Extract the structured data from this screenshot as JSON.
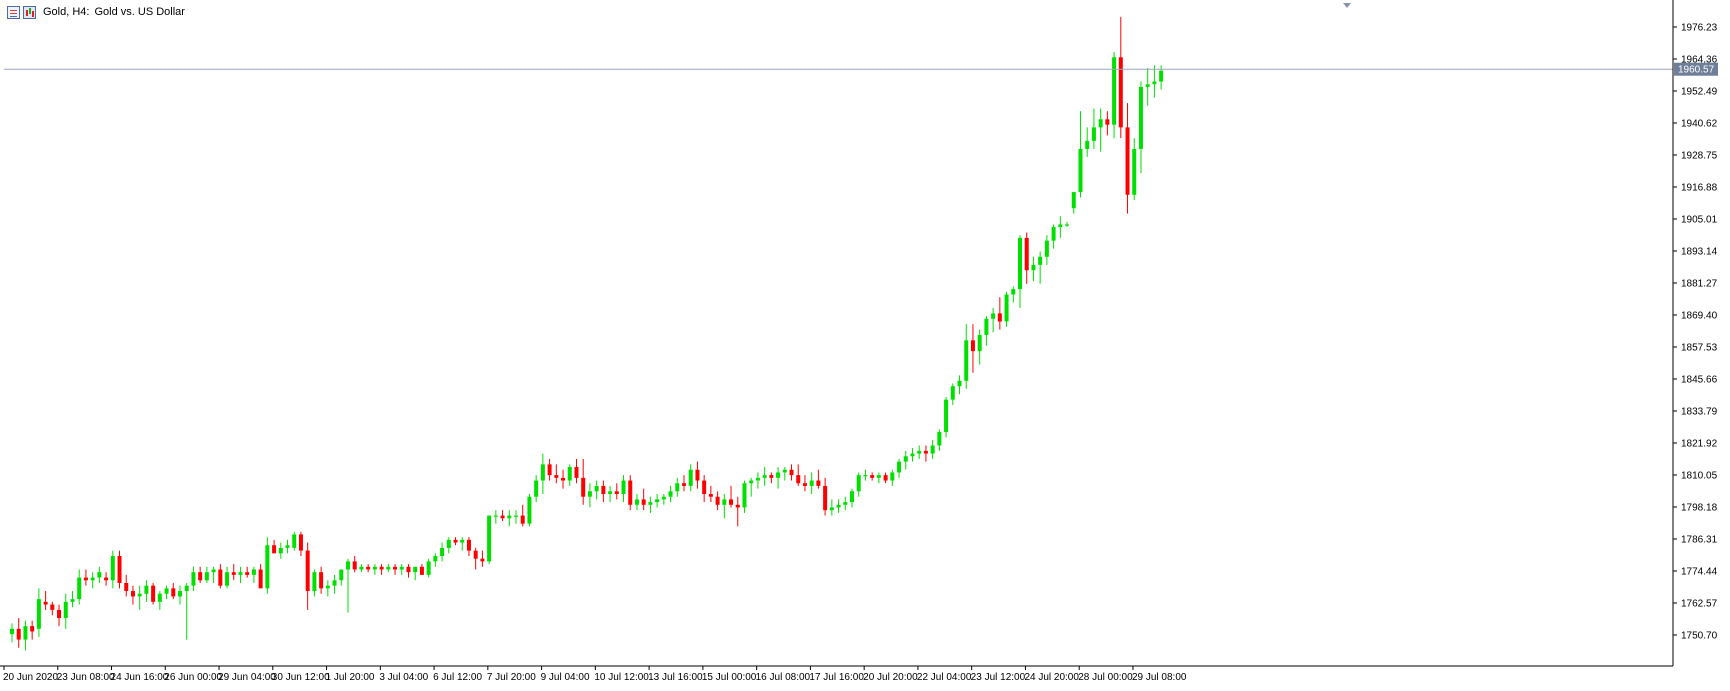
{
  "title": {
    "symbol": "Gold, H4:",
    "description": "Gold vs. US Dollar"
  },
  "price_axis": {
    "labels": [
      "1976.23",
      "1964.36",
      "1952.49",
      "1940.62",
      "1928.75",
      "1916.88",
      "1905.01",
      "1893.14",
      "1881.27",
      "1869.40",
      "1857.53",
      "1845.66",
      "1833.79",
      "1821.92",
      "1810.05",
      "1798.18",
      "1786.31",
      "1774.44",
      "1762.57",
      "1750.70"
    ],
    "current_price": "1960.57"
  },
  "time_axis": {
    "labels": [
      "20 Jun 2020",
      "23 Jun 08:00",
      "24 Jun 16:00",
      "26 Jun 00:00",
      "29 Jun 04:00",
      "30 Jun 12:00",
      "1 Jul 20:00",
      "3 Jul 04:00",
      "6 Jul 12:00",
      "7 Jul 20:00",
      "9 Jul 04:00",
      "10 Jul 12:00",
      "13 Jul 16:00",
      "15 Jul 00:00",
      "16 Jul 08:00",
      "17 Jul 16:00",
      "20 Jul 20:00",
      "22 Jul 04:00",
      "23 Jul 12:00",
      "24 Jul 20:00",
      "28 Jul 00:00",
      "29 Jul 08:00"
    ]
  },
  "colors": {
    "bull": "#00e000",
    "bear": "#ff0000",
    "axis": "#000000",
    "price_line": "#9aa6b8",
    "price_tag_bg": "#6f7f99",
    "price_tag_text": "#ffffff",
    "background": "#ffffff"
  },
  "chart_data": {
    "type": "candlestick",
    "ylim": [
      1742,
      1981
    ],
    "grid": false,
    "candles": [
      [
        1751,
        1755,
        1748,
        1753
      ],
      [
        1753,
        1757,
        1746,
        1749
      ],
      [
        1749,
        1756,
        1745,
        1754
      ],
      [
        1754,
        1756,
        1749,
        1752
      ],
      [
        1753,
        1768,
        1750,
        1764
      ],
      [
        1763,
        1767,
        1760,
        1762
      ],
      [
        1762,
        1763,
        1758,
        1760
      ],
      [
        1760,
        1762,
        1754,
        1757
      ],
      [
        1757,
        1766,
        1753,
        1763
      ],
      [
        1763,
        1767,
        1761,
        1764
      ],
      [
        1764,
        1775,
        1762,
        1772
      ],
      [
        1772,
        1775,
        1769,
        1771
      ],
      [
        1771,
        1774,
        1768,
        1772
      ],
      [
        1772,
        1776,
        1770,
        1774
      ],
      [
        1772,
        1774,
        1769,
        1771
      ],
      [
        1771,
        1782,
        1768,
        1780
      ],
      [
        1780,
        1782,
        1768,
        1770
      ],
      [
        1770,
        1773,
        1765,
        1767
      ],
      [
        1767,
        1769,
        1762,
        1765
      ],
      [
        1765,
        1769,
        1760,
        1766
      ],
      [
        1766,
        1771,
        1763,
        1769
      ],
      [
        1769,
        1770,
        1762,
        1763
      ],
      [
        1763,
        1767,
        1760,
        1766
      ],
      [
        1766,
        1769,
        1764,
        1768
      ],
      [
        1768,
        1770,
        1764,
        1765
      ],
      [
        1765,
        1769,
        1762,
        1767
      ],
      [
        1767,
        1770,
        1749,
        1769
      ],
      [
        1769,
        1776,
        1767,
        1774
      ],
      [
        1774,
        1776,
        1770,
        1771
      ],
      [
        1771,
        1776,
        1770,
        1774
      ],
      [
        1774,
        1776,
        1770,
        1775
      ],
      [
        1775,
        1777,
        1768,
        1769
      ],
      [
        1769,
        1776,
        1768,
        1774
      ],
      [
        1774,
        1777,
        1771,
        1773
      ],
      [
        1773,
        1776,
        1770,
        1774
      ],
      [
        1774,
        1776,
        1772,
        1773
      ],
      [
        1773,
        1776,
        1770,
        1775
      ],
      [
        1775,
        1777,
        1769,
        1768
      ],
      [
        1768,
        1787,
        1766,
        1784
      ],
      [
        1784,
        1786,
        1781,
        1781
      ],
      [
        1781,
        1785,
        1779,
        1783
      ],
      [
        1783,
        1786,
        1781,
        1784
      ],
      [
        1783,
        1789,
        1782,
        1788
      ],
      [
        1788,
        1789,
        1780,
        1782
      ],
      [
        1782,
        1785,
        1760,
        1767
      ],
      [
        1767,
        1775,
        1765,
        1774
      ],
      [
        1774,
        1776,
        1766,
        1768
      ],
      [
        1768,
        1771,
        1765,
        1769
      ],
      [
        1769,
        1773,
        1766,
        1771
      ],
      [
        1771,
        1775,
        1769,
        1775
      ],
      [
        1775,
        1779,
        1759,
        1778
      ],
      [
        1778,
        1780,
        1774,
        1775
      ],
      [
        1775,
        1777,
        1774,
        1776
      ],
      [
        1776,
        1777,
        1774,
        1775
      ],
      [
        1775,
        1777,
        1773,
        1776
      ],
      [
        1776,
        1777,
        1773,
        1775
      ],
      [
        1775,
        1777,
        1774,
        1776
      ],
      [
        1776,
        1777,
        1773,
        1775
      ],
      [
        1775,
        1777,
        1773,
        1776
      ],
      [
        1776,
        1777,
        1772,
        1774
      ],
      [
        1774,
        1776,
        1771,
        1776
      ],
      [
        1776,
        1777,
        1773,
        1773
      ],
      [
        1773,
        1779,
        1772,
        1778
      ],
      [
        1778,
        1781,
        1776,
        1780
      ],
      [
        1780,
        1785,
        1778,
        1783
      ],
      [
        1783,
        1787,
        1781,
        1786
      ],
      [
        1786,
        1787,
        1784,
        1785
      ],
      [
        1785,
        1787,
        1782,
        1786
      ],
      [
        1786,
        1787,
        1780,
        1782
      ],
      [
        1782,
        1783,
        1775,
        1779
      ],
      [
        1779,
        1782,
        1776,
        1778
      ],
      [
        1778,
        1795,
        1777,
        1795
      ],
      [
        1795,
        1797,
        1792,
        1795
      ],
      [
        1795,
        1797,
        1793,
        1794
      ],
      [
        1794,
        1797,
        1791,
        1795
      ],
      [
        1795,
        1797,
        1792,
        1795
      ],
      [
        1795,
        1799,
        1791,
        1792
      ],
      [
        1792,
        1803,
        1791,
        1802
      ],
      [
        1802,
        1810,
        1800,
        1808
      ],
      [
        1808,
        1818,
        1803,
        1814
      ],
      [
        1814,
        1816,
        1808,
        1810
      ],
      [
        1810,
        1814,
        1807,
        1809
      ],
      [
        1809,
        1812,
        1805,
        1808
      ],
      [
        1808,
        1814,
        1806,
        1813
      ],
      [
        1813,
        1816,
        1807,
        1809
      ],
      [
        1809,
        1816,
        1799,
        1802
      ],
      [
        1802,
        1807,
        1798,
        1804
      ],
      [
        1804,
        1808,
        1801,
        1806
      ],
      [
        1806,
        1808,
        1800,
        1803
      ],
      [
        1803,
        1806,
        1800,
        1804
      ],
      [
        1804,
        1807,
        1801,
        1803
      ],
      [
        1803,
        1810,
        1800,
        1808
      ],
      [
        1808,
        1810,
        1797,
        1799
      ],
      [
        1799,
        1803,
        1797,
        1801
      ],
      [
        1801,
        1805,
        1797,
        1799
      ],
      [
        1799,
        1802,
        1796,
        1800
      ],
      [
        1800,
        1803,
        1798,
        1801
      ],
      [
        1801,
        1803,
        1799,
        1802
      ],
      [
        1802,
        1806,
        1800,
        1804
      ],
      [
        1804,
        1809,
        1802,
        1807
      ],
      [
        1807,
        1810,
        1804,
        1806
      ],
      [
        1806,
        1814,
        1804,
        1812
      ],
      [
        1812,
        1815,
        1805,
        1808
      ],
      [
        1808,
        1810,
        1800,
        1803
      ],
      [
        1803,
        1806,
        1800,
        1802
      ],
      [
        1802,
        1804,
        1797,
        1799
      ],
      [
        1799,
        1803,
        1794,
        1801
      ],
      [
        1801,
        1806,
        1798,
        1799
      ],
      [
        1799,
        1802,
        1791,
        1798
      ],
      [
        1798,
        1808,
        1796,
        1807
      ],
      [
        1807,
        1809,
        1802,
        1808
      ],
      [
        1808,
        1811,
        1805,
        1809
      ],
      [
        1809,
        1813,
        1806,
        1810
      ],
      [
        1810,
        1811,
        1807,
        1809
      ],
      [
        1809,
        1813,
        1805,
        1811
      ],
      [
        1811,
        1813,
        1808,
        1812
      ],
      [
        1812,
        1814,
        1808,
        1810
      ],
      [
        1810,
        1814,
        1806,
        1807
      ],
      [
        1807,
        1810,
        1804,
        1806
      ],
      [
        1806,
        1811,
        1803,
        1808
      ],
      [
        1808,
        1812,
        1805,
        1806
      ],
      [
        1806,
        1809,
        1795,
        1797
      ],
      [
        1797,
        1801,
        1795,
        1798
      ],
      [
        1798,
        1801,
        1796,
        1799
      ],
      [
        1799,
        1802,
        1797,
        1800
      ],
      [
        1800,
        1805,
        1798,
        1804
      ],
      [
        1804,
        1811,
        1802,
        1810
      ],
      [
        1810,
        1812,
        1808,
        1810
      ],
      [
        1810,
        1811,
        1808,
        1809
      ],
      [
        1809,
        1811,
        1807,
        1810
      ],
      [
        1810,
        1811,
        1807,
        1808
      ],
      [
        1808,
        1812,
        1806,
        1811
      ],
      [
        1811,
        1816,
        1809,
        1815
      ],
      [
        1815,
        1819,
        1812,
        1817
      ],
      [
        1817,
        1820,
        1815,
        1818
      ],
      [
        1818,
        1821,
        1816,
        1819
      ],
      [
        1819,
        1821,
        1815,
        1818
      ],
      [
        1818,
        1823,
        1816,
        1821
      ],
      [
        1821,
        1827,
        1819,
        1826
      ],
      [
        1826,
        1839,
        1824,
        1838
      ],
      [
        1838,
        1844,
        1836,
        1843
      ],
      [
        1843,
        1847,
        1840,
        1845
      ],
      [
        1845,
        1866,
        1842,
        1860
      ],
      [
        1860,
        1866,
        1848,
        1856
      ],
      [
        1856,
        1864,
        1851,
        1862
      ],
      [
        1862,
        1869,
        1858,
        1868
      ],
      [
        1868,
        1872,
        1863,
        1870
      ],
      [
        1870,
        1876,
        1864,
        1867
      ],
      [
        1867,
        1878,
        1865,
        1877
      ],
      [
        1877,
        1880,
        1874,
        1879
      ],
      [
        1879,
        1899,
        1872,
        1898
      ],
      [
        1898,
        1900,
        1881,
        1886
      ],
      [
        1886,
        1891,
        1882,
        1888
      ],
      [
        1888,
        1893,
        1881,
        1891
      ],
      [
        1891,
        1899,
        1888,
        1897
      ],
      [
        1897,
        1903,
        1894,
        1902
      ],
      [
        1902,
        1906,
        1898,
        1903
      ],
      [
        1903,
        1904,
        1902,
        1903
      ],
      [
        1909,
        1915,
        1907,
        1915
      ],
      [
        1915,
        1945,
        1913,
        1931
      ],
      [
        1931,
        1939,
        1928,
        1934
      ],
      [
        1934,
        1946,
        1931,
        1939
      ],
      [
        1939,
        1946,
        1930,
        1942
      ],
      [
        1942,
        1945,
        1936,
        1940
      ],
      [
        1940,
        1967,
        1935,
        1965
      ],
      [
        1965,
        1980,
        1935,
        1939
      ],
      [
        1939,
        1948,
        1907,
        1914
      ],
      [
        1914,
        1935,
        1912,
        1931
      ],
      [
        1931,
        1956,
        1922,
        1954
      ],
      [
        1954,
        1961,
        1947,
        1955
      ],
      [
        1955,
        1962,
        1950,
        1956
      ],
      [
        1956,
        1962,
        1953,
        1960
      ]
    ]
  }
}
